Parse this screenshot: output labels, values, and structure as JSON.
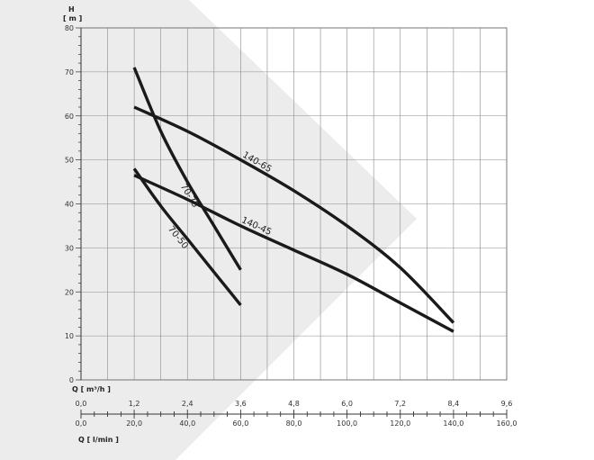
{
  "chart_data": {
    "type": "line",
    "y_axis": {
      "title": "H",
      "unit": "[ m ]",
      "range": [
        0,
        80
      ],
      "ticks": [
        "0",
        "10",
        "20",
        "30",
        "40",
        "50",
        "60",
        "70",
        "80"
      ]
    },
    "x_axis_primary": {
      "label": "Q [ m³/h ]",
      "range": [
        0,
        9.6
      ],
      "ticks": [
        "0,0",
        "1,2",
        "2,4",
        "3,6",
        "4,8",
        "6,0",
        "7,2",
        "8,4",
        "9,6"
      ]
    },
    "x_axis_secondary": {
      "label": "Q [ l/min ]",
      "range": [
        0,
        160
      ],
      "ticks": [
        "0,0",
        "20,0",
        "40,0",
        "60,0",
        "80,0",
        "100,0",
        "120,0",
        "140,0",
        "160,0"
      ]
    },
    "grid": true,
    "series": [
      {
        "name": "70-75",
        "x": [
          1.2,
          1.8,
          2.4,
          3.0,
          3.6
        ],
        "y": [
          71,
          56.5,
          45,
          35,
          25
        ]
      },
      {
        "name": "70-50",
        "x": [
          1.2,
          1.8,
          2.4,
          3.0,
          3.6
        ],
        "y": [
          48,
          39.5,
          32,
          24.5,
          17
        ]
      },
      {
        "name": "140-65",
        "x": [
          1.2,
          2.4,
          3.6,
          4.8,
          6.0,
          7.2,
          8.4
        ],
        "y": [
          62,
          56.5,
          50,
          43,
          35,
          25.5,
          13
        ]
      },
      {
        "name": "140-45",
        "x": [
          1.2,
          2.4,
          3.6,
          4.8,
          6.0,
          7.2,
          8.4
        ],
        "y": [
          46.5,
          41,
          35,
          29.5,
          24,
          17.5,
          11
        ]
      }
    ]
  }
}
